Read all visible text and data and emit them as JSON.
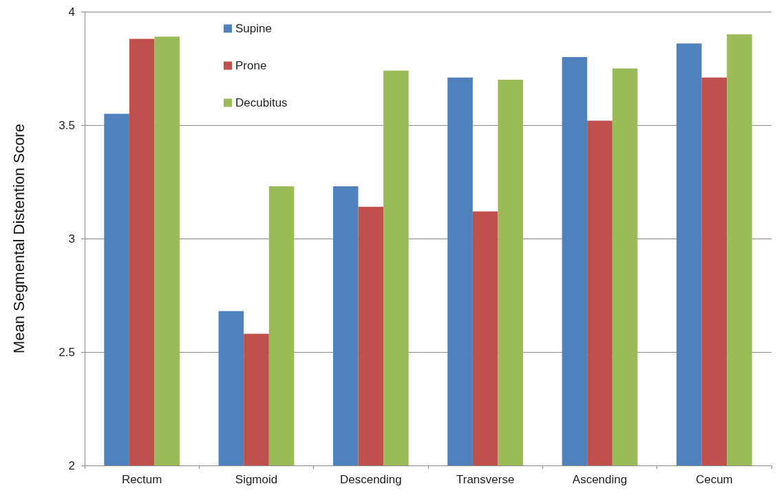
{
  "chart_data": {
    "type": "bar",
    "ylabel": "Mean Segmental Distention Score",
    "categories": [
      "Rectum",
      "Sigmoid",
      "Descending",
      "Transverse",
      "Ascending",
      "Cecum"
    ],
    "series": [
      {
        "name": "Supine",
        "color": "#4f81bd",
        "values": [
          3.55,
          2.68,
          3.23,
          3.71,
          3.8,
          3.86
        ]
      },
      {
        "name": "Prone",
        "color": "#c0504d",
        "values": [
          3.88,
          2.58,
          3.14,
          3.12,
          3.52,
          3.71
        ]
      },
      {
        "name": "Decubitus",
        "color": "#9bbb59",
        "values": [
          3.89,
          3.23,
          3.74,
          3.7,
          3.75,
          3.9
        ]
      }
    ],
    "ylim": [
      2,
      4
    ],
    "yticks": [
      2,
      2.5,
      3,
      3.5,
      4
    ],
    "grid": "y",
    "legend": "top left"
  }
}
